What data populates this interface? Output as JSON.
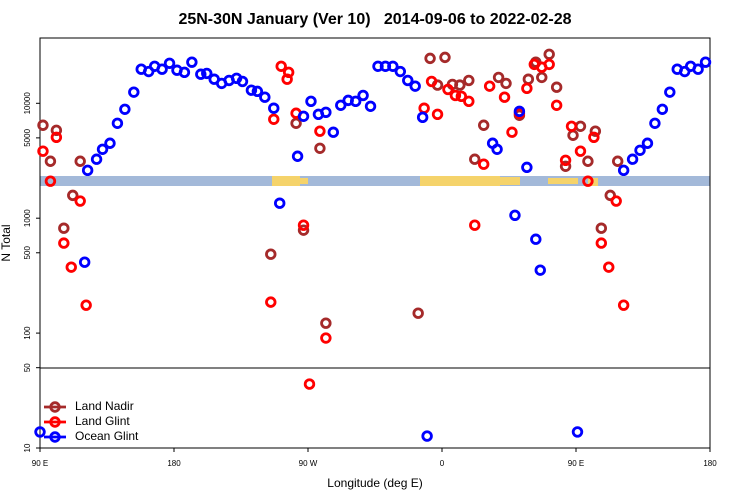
{
  "chart_data": {
    "type": "scatter",
    "title": "25N-30N January (Ver 10)   2014-09-06 to 2022-02-28",
    "x_label": "Longitude (deg E)",
    "y_label": "N Total",
    "log_y": true,
    "xlim": [
      90,
      540
    ],
    "ylim": [
      10,
      37000
    ],
    "xticks": [
      {
        "value": 90,
        "label": "90 E"
      },
      180,
      {
        "value": 270,
        "label": "90 W"
      },
      {
        "value": 360,
        "label": "0"
      },
      {
        "value": 450,
        "label": "90 E"
      },
      {
        "value": 540,
        "label": "180"
      }
    ],
    "yticks": [
      10,
      50,
      100,
      500,
      1000,
      5000,
      10000
    ],
    "legend": "bottom-left",
    "series": [
      {
        "name": "Land Nadir",
        "color": "#a52a2a",
        "x": [
          92,
          97,
          101,
          106,
          112,
          117,
          245,
          262,
          267,
          278,
          282,
          344,
          352,
          362,
          357,
          367,
          372,
          378,
          382,
          388,
          398,
          403,
          412,
          418,
          423,
          427,
          432,
          437,
          443,
          448,
          453,
          458,
          463,
          467,
          473,
          478
        ],
        "values": [
          6440,
          3130,
          5820,
          818,
          1580,
          3130,
          486,
          6700,
          787,
          4060,
          122,
          149,
          24600,
          25100,
          14400,
          14600,
          14400,
          15800,
          3260,
          6440,
          16800,
          14900,
          7870,
          16200,
          22800,
          16800,
          26700,
          13800,
          2830,
          5270,
          6310,
          3130,
          5720,
          818,
          1580,
          3130
        ]
      },
      {
        "name": "Land Glint",
        "color": "#ff0000",
        "x": [
          92,
          97,
          101,
          106,
          111,
          117,
          121,
          245,
          247,
          252,
          256,
          257,
          262,
          267,
          271,
          278,
          282,
          348,
          353,
          357,
          364,
          369,
          373,
          378,
          382,
          388,
          392,
          402,
          407,
          412,
          417,
          422,
          427,
          432,
          437,
          443,
          447,
          453,
          458,
          462,
          467,
          472,
          477,
          482
        ],
        "values": [
          3830,
          2100,
          5060,
          607,
          375,
          1410,
          175,
          186,
          7260,
          21000,
          16200,
          18600,
          8190,
          869,
          36,
          5720,
          90.6,
          9060,
          15500,
          8020,
          13200,
          11700,
          11500,
          10400,
          869,
          2950,
          14100,
          11300,
          5600,
          8190,
          13500,
          21800,
          20600,
          21800,
          9610,
          3190,
          6310,
          3830,
          2100,
          5060,
          607,
          375,
          1410,
          175
        ]
      },
      {
        "name": "Ocean Glint",
        "color": "#0000ff",
        "x": [
          90,
          120,
          122,
          128,
          132,
          137,
          142,
          147,
          153,
          158,
          163,
          167,
          172,
          177,
          182,
          187,
          192,
          198,
          202,
          207,
          212,
          217,
          222,
          226,
          232,
          236,
          241,
          247,
          251,
          263,
          267,
          272,
          277,
          282,
          287,
          292,
          297,
          302,
          307,
          312,
          317,
          322,
          327,
          332,
          337,
          342,
          347,
          350,
          394,
          397,
          409,
          412,
          417,
          423,
          426,
          451,
          482,
          488,
          493,
          498,
          503,
          508,
          513,
          518,
          523,
          527,
          532,
          537
        ],
        "values": [
          13.8,
          414,
          2610,
          3260,
          3980,
          4490,
          6700,
          8870,
          12500,
          19800,
          18900,
          21000,
          19800,
          22300,
          19400,
          18600,
          22800,
          17900,
          18200,
          16200,
          14900,
          15800,
          16500,
          15500,
          13000,
          12700,
          11300,
          9060,
          1350,
          3460,
          7710,
          10400,
          8020,
          8350,
          5600,
          9610,
          10600,
          10400,
          11700,
          9420,
          21000,
          21000,
          21000,
          18900,
          15800,
          14100,
          7550,
          12.7,
          4490,
          3980,
          1060,
          8510,
          2770,
          656,
          353,
          13.8,
          2610,
          3260,
          3900,
          4490,
          6700,
          8870,
          12500,
          19800,
          18900,
          21000,
          19800,
          22800
        ]
      }
    ]
  }
}
